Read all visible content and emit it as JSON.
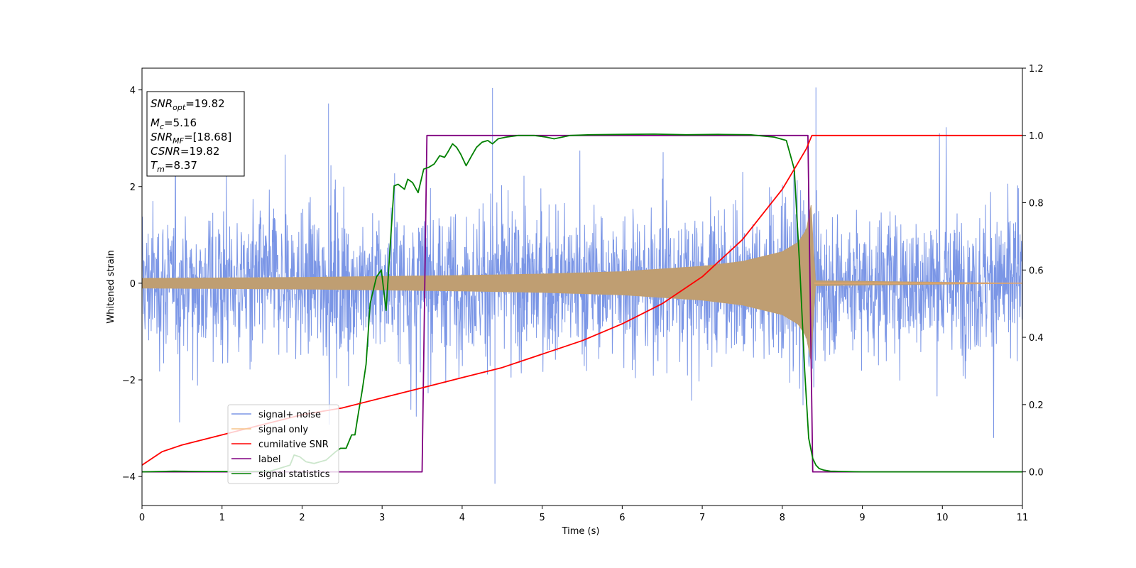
{
  "chart_data": {
    "type": "line",
    "xlabel": "Time (s)",
    "ylabel": "Whitened strain",
    "xlim": [
      0,
      11
    ],
    "ylim": [
      -4.6,
      4.45
    ],
    "y2lim": [
      -0.1,
      1.2
    ],
    "xticks": [
      "0",
      "1",
      "2",
      "3",
      "4",
      "5",
      "6",
      "7",
      "8",
      "9",
      "10",
      "11"
    ],
    "yticks": [
      "−4",
      "−2",
      "0",
      "2",
      "4"
    ],
    "y2ticks": [
      "0.0",
      "0.2",
      "0.4",
      "0.6",
      "0.8",
      "1.0",
      "1.2"
    ],
    "legend_position": "lower-left",
    "info_box": {
      "snr_opt": {
        "base": "SNR",
        "sub": "opt",
        "value": "=19.82"
      },
      "mc": {
        "base": "M",
        "sub": "c",
        "value": "=5.16"
      },
      "snr_mf": {
        "base": "SNR",
        "sub": "MF",
        "value": "=[18.68]"
      },
      "csnr": {
        "label": "CSNR",
        "value": "=19.82"
      },
      "tm": {
        "base": "T",
        "sub": "m",
        "value": "=8.37"
      }
    },
    "series": [
      {
        "name": "signal+ noise",
        "axis": "left",
        "color": "#7b96e6",
        "description_points": {
          "x": [
            0,
            11
          ],
          "envelope": [
            -2.8,
            3.0
          ],
          "peaks": [
            [
              2.33,
              3.72
            ],
            [
              4.38,
              4.04
            ],
            [
              8.42,
              4.05
            ],
            [
              4.41,
              -4.15
            ]
          ]
        }
      },
      {
        "name": "signal only",
        "axis": "left",
        "color": "#bf9e72",
        "x": [
          0,
          1,
          2,
          3,
          4,
          5,
          6,
          7,
          7.5,
          8,
          8.2,
          8.3,
          8.37,
          8.4,
          11
        ],
        "amp": [
          0.1,
          0.11,
          0.12,
          0.14,
          0.16,
          0.19,
          0.24,
          0.35,
          0.45,
          0.65,
          0.85,
          1.1,
          1.7,
          0.05,
          0
        ]
      },
      {
        "name": "cumilative SNR",
        "axis": "right",
        "color": "#ff0000",
        "x": [
          0,
          0.25,
          0.5,
          1,
          1.5,
          2,
          2.5,
          3,
          3.5,
          4,
          4.5,
          5,
          5.5,
          6,
          6.5,
          7,
          7.5,
          8,
          8.2,
          8.3,
          8.37,
          8.4,
          11
        ],
        "y": [
          0.02,
          0.06,
          0.08,
          0.11,
          0.14,
          0.17,
          0.19,
          0.22,
          0.25,
          0.28,
          0.31,
          0.35,
          0.39,
          0.44,
          0.5,
          0.58,
          0.69,
          0.84,
          0.92,
          0.96,
          1.0,
          1.0,
          1.0
        ]
      },
      {
        "name": "label",
        "axis": "right",
        "color": "#800080",
        "x": [
          0,
          3.5,
          3.56,
          8.32,
          8.38,
          11
        ],
        "y": [
          0,
          0,
          1,
          1,
          0,
          0
        ]
      },
      {
        "name": "signal statistics",
        "axis": "right",
        "color": "#008000",
        "x": [
          0,
          0.4,
          0.8,
          1.2,
          1.6,
          1.85,
          1.9,
          1.97,
          2.05,
          2.15,
          2.3,
          2.42,
          2.48,
          2.55,
          2.62,
          2.66,
          2.7,
          2.75,
          2.8,
          2.85,
          2.93,
          2.99,
          3.05,
          3.1,
          3.15,
          3.2,
          3.28,
          3.32,
          3.38,
          3.45,
          3.52,
          3.58,
          3.65,
          3.72,
          3.78,
          3.82,
          3.88,
          3.93,
          3.98,
          4.05,
          4.12,
          4.18,
          4.25,
          4.32,
          4.38,
          4.45,
          4.55,
          4.7,
          4.9,
          5.05,
          5.15,
          5.35,
          5.6,
          6.0,
          6.4,
          6.8,
          7.2,
          7.6,
          7.9,
          8.05,
          8.15,
          8.22,
          8.28,
          8.33,
          8.38,
          8.42,
          8.46,
          8.52,
          8.6,
          9,
          11
        ],
        "y": [
          0,
          0.002,
          0.001,
          0.001,
          0.002,
          0.02,
          0.05,
          0.045,
          0.03,
          0.025,
          0.035,
          0.06,
          0.07,
          0.07,
          0.11,
          0.11,
          0.17,
          0.24,
          0.32,
          0.5,
          0.58,
          0.6,
          0.48,
          0.67,
          0.85,
          0.855,
          0.84,
          0.87,
          0.86,
          0.83,
          0.9,
          0.905,
          0.915,
          0.94,
          0.935,
          0.95,
          0.975,
          0.965,
          0.945,
          0.91,
          0.94,
          0.965,
          0.98,
          0.985,
          0.975,
          0.99,
          0.995,
          1.0,
          1.0,
          0.995,
          0.99,
          1.0,
          1.002,
          1.003,
          1.004,
          1.002,
          1.003,
          1.002,
          0.995,
          0.985,
          0.9,
          0.6,
          0.3,
          0.1,
          0.04,
          0.02,
          0.01,
          0.005,
          0.002,
          0,
          0
        ]
      }
    ]
  }
}
